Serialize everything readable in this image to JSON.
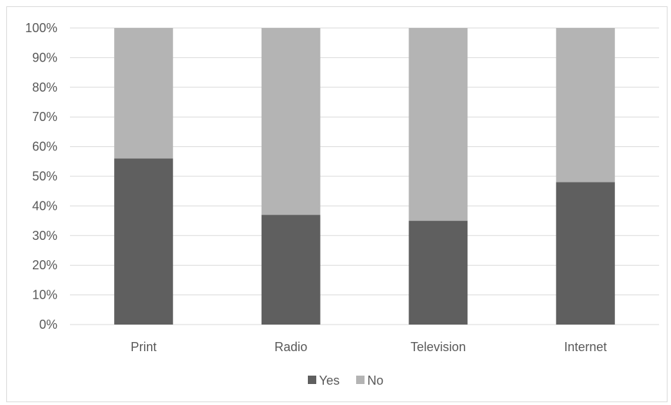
{
  "chart_data": {
    "type": "bar",
    "stacked": true,
    "categories": [
      "Print",
      "Radio",
      "Television",
      "Internet"
    ],
    "series": [
      {
        "name": "Yes",
        "values": [
          56,
          37,
          35,
          48
        ]
      },
      {
        "name": "No",
        "values": [
          44,
          63,
          65,
          52
        ]
      }
    ],
    "y_tick_labels": [
      "0%",
      "10%",
      "20%",
      "30%",
      "40%",
      "50%",
      "60%",
      "70%",
      "80%",
      "90%",
      "100%"
    ],
    "ylim": [
      0,
      100
    ],
    "y_unit": "%",
    "grid": true,
    "legend_position": "bottom",
    "colors": {
      "Yes": "#5f5f5f",
      "No": "#b4b4b4",
      "gridline": "#d9d9d9",
      "text": "#595959"
    }
  }
}
